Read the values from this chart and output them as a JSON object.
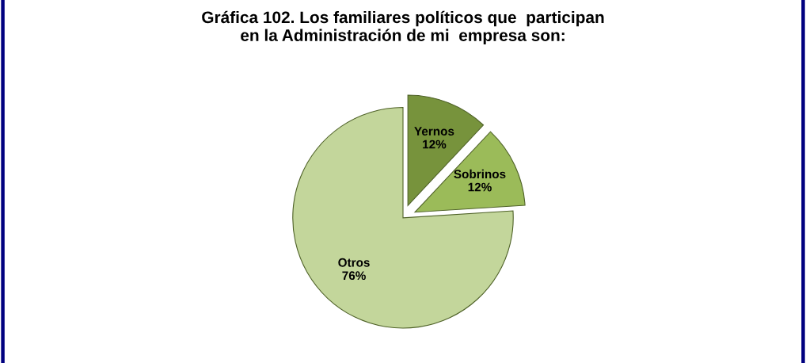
{
  "chart_data": {
    "type": "pie",
    "title": "Gráfica 102. Los familiares políticos que  participan\nen la Administración de mi  empresa son:",
    "categories": [
      "Yernos",
      "Sobrinos",
      "Otros"
    ],
    "values": [
      12,
      12,
      76
    ],
    "colors": [
      "#77933c",
      "#9bbb59",
      "#c3d69b"
    ],
    "value_labels": [
      "12%",
      "12%",
      "76%"
    ],
    "legend": false
  }
}
